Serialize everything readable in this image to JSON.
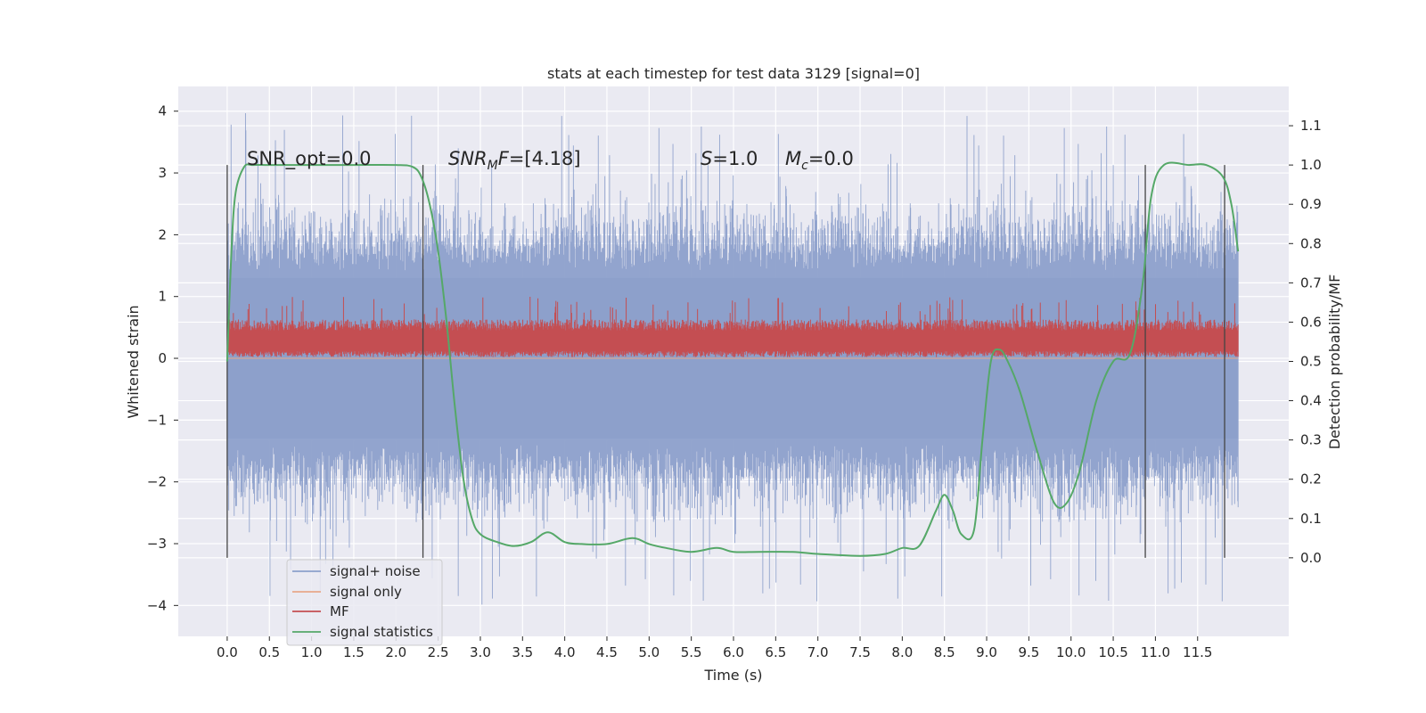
{
  "chart_data": {
    "type": "line",
    "title": "stats at each timestep for test data 3129 [signal=0]",
    "xlabel": "Time (s)",
    "ylabel": "Whitened strain",
    "y2label": "Detection probability/MF",
    "xlim": [
      -0.58,
      12.58
    ],
    "ylim": [
      -4.5,
      4.4
    ],
    "y2lim": [
      -0.2,
      1.2
    ],
    "x_ticks": [
      "0.0",
      "0.5",
      "1.0",
      "1.5",
      "2.0",
      "2.5",
      "3.0",
      "3.5",
      "4.0",
      "4.5",
      "5.0",
      "5.5",
      "6.0",
      "6.5",
      "7.0",
      "7.5",
      "8.0",
      "8.5",
      "9.0",
      "9.5",
      "10.0",
      "10.5",
      "11.0",
      "11.5"
    ],
    "y_ticks": [
      "4",
      "3",
      "2",
      "1",
      "0",
      "−1",
      "−2",
      "−3",
      "−4"
    ],
    "y2_ticks": [
      "1.1",
      "1.0",
      "0.9",
      "0.8",
      "0.7",
      "0.6",
      "0.5",
      "0.4",
      "0.3",
      "0.2",
      "0.1",
      "0.0"
    ],
    "grid": true,
    "background": "#eaeaf2",
    "annotations": {
      "snr_opt": "SNR_opt=0.0",
      "snr_mf": "=[4.18]",
      "s_val": "=1.0",
      "mc_val": "=0.0"
    },
    "vertical_markers_x": [
      0.0,
      2.32,
      10.88,
      11.82
    ],
    "series": [
      {
        "name": "signal+ noise",
        "color": "#8da0cb",
        "axis": "left",
        "description_range": [
          -2.3,
          2.2
        ],
        "x_range": [
          0.0,
          11.98
        ]
      },
      {
        "name": "signal only",
        "color": "#e8a88a",
        "axis": "left",
        "values_constant": 0
      },
      {
        "name": "MF",
        "color": "#c44e52",
        "axis": "left",
        "baseline_range": [
          0.05,
          0.55
        ],
        "x_range": [
          0.0,
          11.98
        ]
      },
      {
        "name": "signal statistics",
        "color": "#55a868",
        "axis": "right",
        "x": [
          0.0,
          0.05,
          0.1,
          0.2,
          0.3,
          0.5,
          1.0,
          1.5,
          2.0,
          2.2,
          2.3,
          2.4,
          2.5,
          2.6,
          2.7,
          2.8,
          2.9,
          3.0,
          3.2,
          3.4,
          3.6,
          3.8,
          4.0,
          4.2,
          4.5,
          4.8,
          5.0,
          5.2,
          5.5,
          5.8,
          6.0,
          6.3,
          6.7,
          7.0,
          7.5,
          7.8,
          8.0,
          8.2,
          8.4,
          8.5,
          8.6,
          8.7,
          8.85,
          8.95,
          9.05,
          9.15,
          9.25,
          9.4,
          9.6,
          9.8,
          9.95,
          10.1,
          10.3,
          10.5,
          10.7,
          10.85,
          10.95,
          11.1,
          11.4,
          11.6,
          11.8,
          11.9,
          11.98
        ],
        "values": [
          0.5,
          0.78,
          0.93,
          0.995,
          1.0,
          1.0,
          1.0,
          1.0,
          1.0,
          0.995,
          0.97,
          0.9,
          0.78,
          0.6,
          0.38,
          0.2,
          0.1,
          0.06,
          0.04,
          0.03,
          0.04,
          0.065,
          0.04,
          0.035,
          0.035,
          0.05,
          0.035,
          0.025,
          0.015,
          0.025,
          0.015,
          0.015,
          0.015,
          0.01,
          0.005,
          0.01,
          0.025,
          0.03,
          0.12,
          0.16,
          0.12,
          0.06,
          0.07,
          0.3,
          0.5,
          0.53,
          0.5,
          0.42,
          0.27,
          0.14,
          0.14,
          0.22,
          0.4,
          0.5,
          0.52,
          0.7,
          0.92,
          1.0,
          1.0,
          1.0,
          0.97,
          0.9,
          0.78
        ]
      }
    ],
    "legend": [
      "signal+ noise",
      "signal only",
      "MF",
      "signal statistics"
    ],
    "legend_position": "lower-left"
  }
}
